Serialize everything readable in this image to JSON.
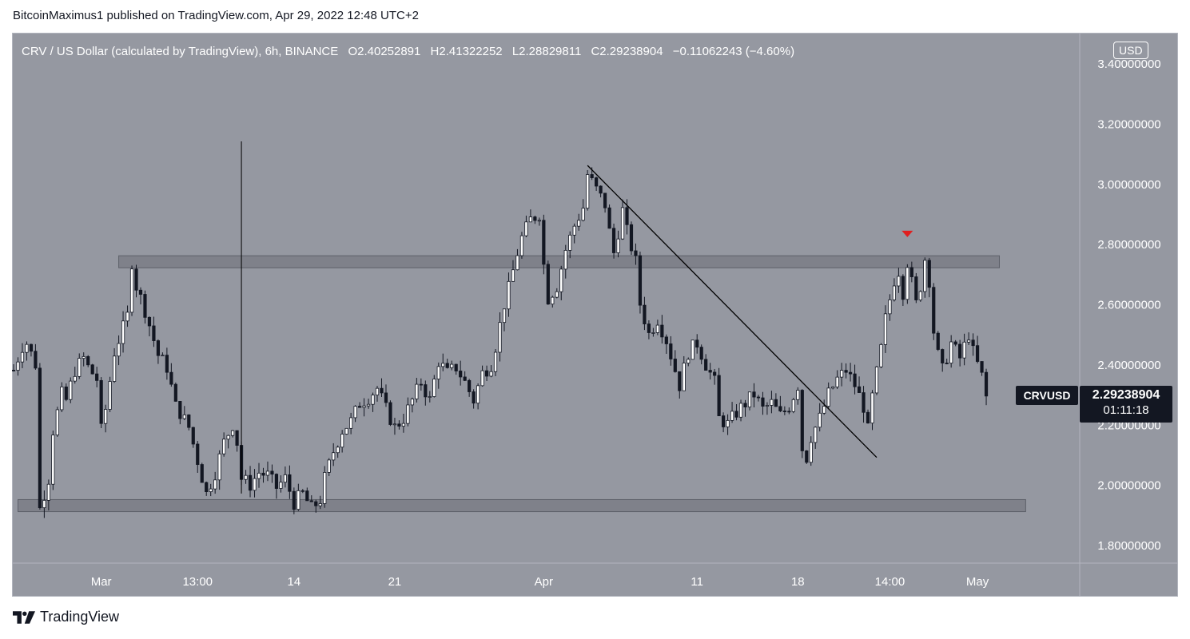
{
  "publisher_line": "BitcoinMaximus1 published on TradingView.com, Apr 29, 2022 12:48 UTC+2",
  "footer_brand": "TradingView",
  "legend": {
    "symbol": "CRV / US Dollar (calculated by TradingView), 6h, BINANCE",
    "open": "O2.40252891",
    "high": "H2.41322252",
    "low": "L2.28829811",
    "close": "C2.29238904",
    "change": "−0.11062243 (−4.60%)"
  },
  "currency_badge": "USD",
  "last_price": {
    "ticker": "CRVUSD",
    "value": "2.29238904",
    "countdown": "01:11:18"
  },
  "colors": {
    "background": "#9598a1",
    "candle": "#ffffff",
    "wick": "#131722",
    "zone": "#6d7079",
    "trendline": "#000000",
    "marker": "#e01f1f",
    "badge": "#131722"
  },
  "chart_data": {
    "type": "candlestick",
    "symbol": "CRVUSD",
    "interval": "6h",
    "y_range": [
      1.73,
      3.5
    ],
    "y_ticks": [
      {
        "value": 3.4,
        "label": "3.40000000"
      },
      {
        "value": 3.2,
        "label": "3.20000000"
      },
      {
        "value": 3.0,
        "label": "3.00000000"
      },
      {
        "value": 2.8,
        "label": "2.80000000"
      },
      {
        "value": 2.6,
        "label": "2.60000000"
      },
      {
        "value": 2.4,
        "label": "2.40000000"
      },
      {
        "value": 2.2,
        "label": "2.20000000"
      },
      {
        "value": 2.0,
        "label": "2.00000000"
      },
      {
        "value": 1.8,
        "label": "1.80000000"
      }
    ],
    "x_range": [
      0,
      224
    ],
    "x_ticks": [
      {
        "index": 20,
        "label": "Mar"
      },
      {
        "index": 42,
        "label": "13:00"
      },
      {
        "index": 64,
        "label": "14"
      },
      {
        "index": 87,
        "label": "21"
      },
      {
        "index": 121,
        "label": "Apr"
      },
      {
        "index": 156,
        "label": "11"
      },
      {
        "index": 179,
        "label": "18"
      },
      {
        "index": 200,
        "label": "14:00"
      },
      {
        "index": 220,
        "label": "May"
      }
    ],
    "zones": [
      {
        "x_start": 24,
        "x_end": 225,
        "y_low": 2.72,
        "y_high": 2.76
      },
      {
        "x_start": 1,
        "x_end": 231,
        "y_low": 1.91,
        "y_high": 1.95
      }
    ],
    "trendline": {
      "start": [
        131,
        3.06
      ],
      "end": [
        197,
        2.09
      ]
    },
    "vertical_line": {
      "index": 52,
      "y_low": 1.97,
      "y_high": 3.14
    },
    "marker": {
      "index": 204,
      "value": 2.83
    },
    "path": [
      [
        0,
        2.38
      ],
      [
        2,
        2.46
      ],
      [
        3,
        2.47
      ],
      [
        5,
        2.4
      ],
      [
        6,
        1.92
      ],
      [
        8,
        2.02
      ],
      [
        9,
        2.18
      ],
      [
        11,
        2.3
      ],
      [
        12,
        2.28
      ],
      [
        14,
        2.38
      ],
      [
        16,
        2.42
      ],
      [
        17,
        2.39
      ],
      [
        19,
        2.35
      ],
      [
        20,
        2.18
      ],
      [
        21,
        2.25
      ],
      [
        23,
        2.44
      ],
      [
        26,
        2.56
      ],
      [
        27,
        2.74
      ],
      [
        28,
        2.66
      ],
      [
        30,
        2.58
      ],
      [
        33,
        2.43
      ],
      [
        35,
        2.39
      ],
      [
        37,
        2.26
      ],
      [
        38,
        2.24
      ],
      [
        40,
        2.19
      ],
      [
        42,
        2.08
      ],
      [
        44,
        1.97
      ],
      [
        46,
        2.04
      ],
      [
        48,
        2.14
      ],
      [
        50,
        2.2
      ],
      [
        51,
        2.14
      ],
      [
        52,
        2.02
      ],
      [
        54,
        2.0
      ],
      [
        56,
        2.04
      ],
      [
        58,
        2.03
      ],
      [
        60,
        1.99
      ],
      [
        62,
        2.02
      ],
      [
        64,
        1.94
      ],
      [
        66,
        1.97
      ],
      [
        68,
        1.92
      ],
      [
        70,
        1.95
      ],
      [
        71,
        2.02
      ],
      [
        73,
        2.11
      ],
      [
        75,
        2.18
      ],
      [
        77,
        2.21
      ],
      [
        79,
        2.27
      ],
      [
        81,
        2.29
      ],
      [
        83,
        2.32
      ],
      [
        85,
        2.25
      ],
      [
        87,
        2.19
      ],
      [
        89,
        2.22
      ],
      [
        92,
        2.31
      ],
      [
        93,
        2.34
      ],
      [
        95,
        2.28
      ],
      [
        97,
        2.41
      ],
      [
        99,
        2.37
      ],
      [
        101,
        2.39
      ],
      [
        103,
        2.34
      ],
      [
        105,
        2.28
      ],
      [
        107,
        2.37
      ],
      [
        109,
        2.4
      ],
      [
        110,
        2.46
      ],
      [
        112,
        2.6
      ],
      [
        113,
        2.65
      ],
      [
        115,
        2.77
      ],
      [
        116,
        2.82
      ],
      [
        118,
        2.88
      ],
      [
        120,
        2.9
      ],
      [
        121,
        2.73
      ],
      [
        122,
        2.62
      ],
      [
        124,
        2.66
      ],
      [
        126,
        2.78
      ],
      [
        128,
        2.86
      ],
      [
        130,
        2.92
      ],
      [
        131,
        3.03
      ],
      [
        133,
        2.98
      ],
      [
        135,
        2.93
      ],
      [
        136,
        2.84
      ],
      [
        137,
        2.77
      ],
      [
        139,
        2.91
      ],
      [
        140,
        2.84
      ],
      [
        142,
        2.74
      ],
      [
        143,
        2.6
      ],
      [
        145,
        2.5
      ],
      [
        147,
        2.55
      ],
      [
        149,
        2.48
      ],
      [
        151,
        2.38
      ],
      [
        152,
        2.33
      ],
      [
        154,
        2.44
      ],
      [
        156,
        2.47
      ],
      [
        158,
        2.4
      ],
      [
        160,
        2.34
      ],
      [
        161,
        2.22
      ],
      [
        163,
        2.2
      ],
      [
        165,
        2.24
      ],
      [
        167,
        2.27
      ],
      [
        169,
        2.3
      ],
      [
        171,
        2.25
      ],
      [
        173,
        2.27
      ],
      [
        175,
        2.23
      ],
      [
        177,
        2.26
      ],
      [
        179,
        2.33
      ],
      [
        180,
        2.12
      ],
      [
        181,
        2.09
      ],
      [
        182,
        2.16
      ],
      [
        184,
        2.22
      ],
      [
        186,
        2.3
      ],
      [
        188,
        2.35
      ],
      [
        190,
        2.38
      ],
      [
        192,
        2.33
      ],
      [
        194,
        2.26
      ],
      [
        195,
        2.18
      ],
      [
        196,
        2.29
      ],
      [
        198,
        2.45
      ],
      [
        199,
        2.55
      ],
      [
        201,
        2.68
      ],
      [
        202,
        2.71
      ],
      [
        203,
        2.64
      ],
      [
        204,
        2.74
      ],
      [
        206,
        2.6
      ],
      [
        207,
        2.66
      ],
      [
        208,
        2.75
      ],
      [
        209,
        2.68
      ],
      [
        210,
        2.51
      ],
      [
        211,
        2.43
      ],
      [
        212,
        2.38
      ],
      [
        214,
        2.47
      ],
      [
        216,
        2.42
      ],
      [
        218,
        2.5
      ],
      [
        219,
        2.44
      ],
      [
        220,
        2.4
      ],
      [
        221,
        2.36
      ],
      [
        222,
        2.29
      ]
    ]
  }
}
